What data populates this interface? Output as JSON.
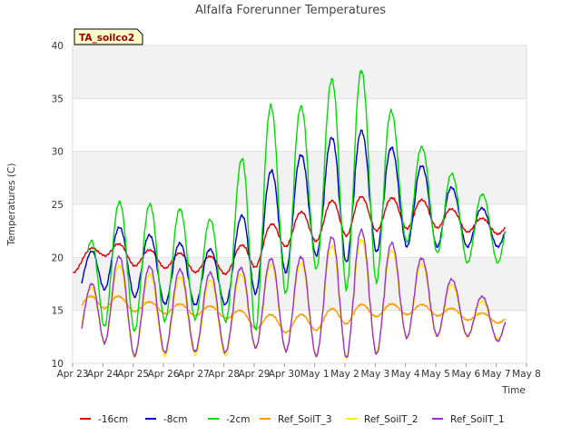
{
  "chart_data": {
    "type": "line",
    "title": "Alfalfa Forerunner Temperatures",
    "xlabel": "Time",
    "ylabel": "Temperatures (C)",
    "badge": "TA_soilco2",
    "xlim": [
      0,
      15
    ],
    "ylim": [
      10,
      40
    ],
    "yticks": [
      10,
      15,
      20,
      25,
      30,
      35,
      40
    ],
    "xtick_labels": [
      "Apr 23",
      "Apr 24",
      "Apr 25",
      "Apr 26",
      "Apr 27",
      "Apr 28",
      "Apr 29",
      "Apr 30",
      "May 1",
      "May 2",
      "May 3",
      "May 4",
      "May 5",
      "May 6",
      "May 7",
      "May 8"
    ],
    "grid": true,
    "legend_position": "bottom",
    "series": [
      {
        "name": "-16cm",
        "color": "#dd0000",
        "mean": [
          19.0,
          21.0,
          20.0,
          19.8,
          19.4,
          19.2,
          20.5,
          22.5,
          23.0,
          24.0,
          24.0,
          24.2,
          24.0,
          23.2,
          22.8,
          22.8
        ],
        "amp": [
          0.5,
          0.8,
          0.8,
          0.8,
          0.8,
          0.8,
          1.5,
          1.5,
          1.5,
          2.0,
          1.5,
          1.5,
          1.2,
          0.8,
          0.6,
          0.6
        ],
        "t0": 0.0,
        "t1": 14.3
      },
      {
        "name": "-8cm",
        "color": "#0000cc",
        "mean": [
          16.5,
          20.0,
          19.5,
          18.6,
          18.3,
          18.0,
          21.5,
          24.0,
          25.0,
          26.0,
          26.0,
          25.2,
          24.5,
          23.2,
          22.5,
          22.5
        ],
        "amp": [
          0.5,
          3.0,
          3.2,
          3.0,
          2.8,
          2.5,
          5.0,
          5.5,
          4.8,
          6.5,
          5.5,
          4.2,
          3.5,
          2.2,
          1.5,
          1.5
        ],
        "t0": 0.3,
        "t1": 14.3
      },
      {
        "name": "-2cm",
        "color": "#00dd00",
        "mean": [
          15.0,
          19.5,
          19.0,
          19.5,
          19.2,
          18.5,
          23.5,
          25.5,
          26.5,
          28.0,
          27.0,
          26.5,
          25.0,
          23.0,
          22.5,
          22.5
        ],
        "amp": [
          1.0,
          6.0,
          6.0,
          5.5,
          5.0,
          4.5,
          10.5,
          9.0,
          7.5,
          11.0,
          9.5,
          5.0,
          4.5,
          3.5,
          3.0,
          3.0
        ],
        "t0": 0.5,
        "t1": 14.3
      },
      {
        "name": "Ref_SoilT_3",
        "color": "#ff9900",
        "mean": [
          15.2,
          16.0,
          15.4,
          15.2,
          15.0,
          14.8,
          14.0,
          13.7,
          13.9,
          14.6,
          15.0,
          15.1,
          15.0,
          14.5,
          14.2,
          14.2
        ],
        "amp": [
          0.5,
          0.8,
          0.5,
          0.5,
          0.5,
          0.5,
          0.7,
          0.8,
          0.8,
          0.9,
          0.6,
          0.5,
          0.5,
          0.4,
          0.4,
          0.4
        ],
        "t0": 0.3,
        "t1": 14.3
      },
      {
        "name": "Ref_SoilT_2",
        "color": "#ffee00",
        "mean": [
          12.5,
          16.0,
          14.6,
          14.5,
          14.4,
          14.2,
          15.2,
          15.4,
          15.0,
          16.5,
          16.0,
          16.4,
          15.5,
          14.5,
          13.8,
          13.8
        ],
        "amp": [
          0.6,
          4.0,
          4.0,
          3.8,
          3.6,
          3.5,
          3.8,
          4.2,
          4.3,
          6.0,
          5.0,
          4.0,
          3.0,
          2.0,
          1.5,
          1.5
        ],
        "t0": 0.3,
        "t1": 14.3
      },
      {
        "name": "Ref_SoilT_1",
        "color": "#9933cc",
        "mean": [
          11.8,
          16.5,
          15.0,
          15.0,
          14.9,
          14.7,
          15.5,
          15.7,
          15.3,
          17.0,
          16.3,
          16.7,
          15.8,
          14.8,
          13.9,
          13.9
        ],
        "amp": [
          0.6,
          4.5,
          4.3,
          4.0,
          3.8,
          3.7,
          4.0,
          4.5,
          4.6,
          6.5,
          5.5,
          4.3,
          3.2,
          2.2,
          1.8,
          1.8
        ],
        "t0": 0.3,
        "t1": 14.3
      }
    ]
  }
}
